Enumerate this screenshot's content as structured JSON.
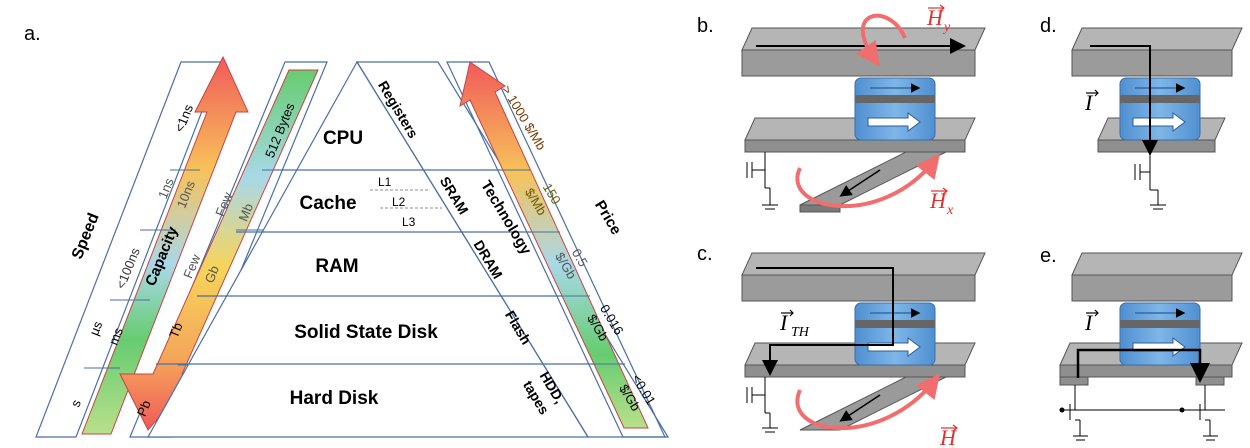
{
  "panel_labels": {
    "a": "a.",
    "b": "b.",
    "c": "c.",
    "d": "d.",
    "e": "e."
  },
  "pyramid": {
    "levels": [
      "CPU",
      "Cache",
      "RAM",
      "Solid State Disk",
      "Hard Disk"
    ],
    "cache_sublevels": [
      "L1",
      "L2",
      "L3"
    ],
    "column_header": "Registers",
    "technology_header": "Technology",
    "technologies": [
      "SRAM",
      "DRAM",
      "Flash",
      "HDD,",
      "tapes"
    ]
  },
  "speed": {
    "header": "Speed",
    "values": [
      "<1ns",
      "1ns",
      "10ns",
      "<100ns",
      "µs",
      "ms",
      "s"
    ]
  },
  "capacity": {
    "header": "Capacity",
    "values": [
      "512 Bytes",
      "Few",
      "Mb",
      "Few",
      "Gb",
      "Tb",
      "Pb"
    ]
  },
  "price": {
    "header": "Price",
    "values": [
      "> 1000 $/Mb",
      "150",
      "$/Mb",
      "0.5",
      "$/Gb",
      "0.016",
      "$/Gb",
      "<0.01",
      "$/Gb"
    ]
  },
  "fields": {
    "Hy": "H",
    "Hy_sub": "y",
    "Hx": "H",
    "Hx_sub": "x",
    "H": "H",
    "I": "I",
    "ITH": "I",
    "ITH_sub": "TH"
  },
  "colors": {
    "arrow_hot": "#f25a5a",
    "arrow_mid": "#f7c85a",
    "arrow_cool": "#9ed9ea",
    "arrow_low": "#6fce74",
    "field_red": "#f26d6d",
    "slab": "#a8a8a8",
    "mtj_blue": "#5b9bd5"
  }
}
